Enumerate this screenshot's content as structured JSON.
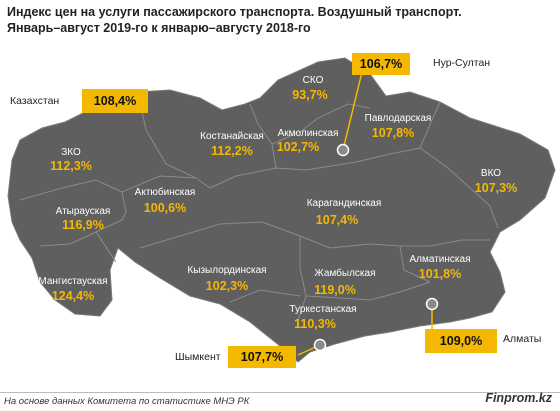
{
  "title": {
    "line1": "Индекс цен на услуги  пассажирского транспорта. Воздушный  транспорт.",
    "line2": "Январь–август  2019-го  к январю–августу  2018-го"
  },
  "country": {
    "label": "Казахстан",
    "value": "108,4%"
  },
  "regions": [
    {
      "id": "zko",
      "name": "ЗКО",
      "value": "112,3%"
    },
    {
      "id": "atyrau",
      "name": "Атырауская",
      "value": "116,9%"
    },
    {
      "id": "mangystau",
      "name": "Мангистауская",
      "value": "124,4%"
    },
    {
      "id": "aktobe",
      "name": "Актюбинская",
      "value": "100,6%"
    },
    {
      "id": "kostanay",
      "name": "Костанайская",
      "value": "112,2%"
    },
    {
      "id": "sko",
      "name": "СКО",
      "value": "93,7%"
    },
    {
      "id": "akmola",
      "name": "Акмолинская",
      "value": "102,7%"
    },
    {
      "id": "pavlodar",
      "name": "Павлодарская",
      "value": "107,8%"
    },
    {
      "id": "vko",
      "name": "ВКО",
      "value": "107,3%"
    },
    {
      "id": "karaganda",
      "name": "Карагандинская",
      "value": "107,4%"
    },
    {
      "id": "kyzylorda",
      "name": "Кызылординская",
      "value": "102,3%"
    },
    {
      "id": "zhambyl",
      "name": "Жамбылская",
      "value": "119,0%"
    },
    {
      "id": "almaty-region",
      "name": "Алматинская",
      "value": "101,8%"
    },
    {
      "id": "turkestan",
      "name": "Туркестанская",
      "value": "110,3%"
    }
  ],
  "cities": [
    {
      "id": "nur-sultan",
      "name": "Нур-Султан",
      "value": "106,7%"
    },
    {
      "id": "almaty",
      "name": "Алматы",
      "value": "109,0%"
    },
    {
      "id": "shymkent",
      "name": "Шымкент",
      "value": "107,7%"
    }
  ],
  "footer": {
    "source": "На основе данных  Комитета по статистике МНЭ РК",
    "brand": "Finprom.kz"
  },
  "colors": {
    "map": "#5f5f5f",
    "border": "#8a8a8a",
    "accent": "#f5b800"
  }
}
